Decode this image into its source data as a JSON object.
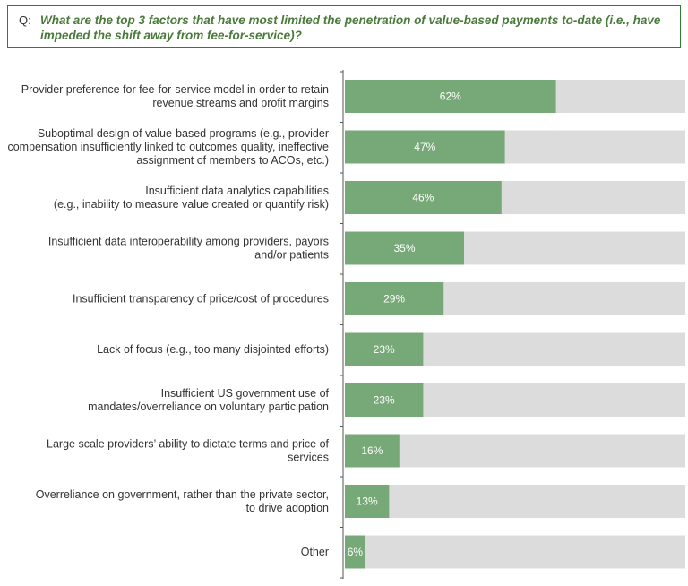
{
  "question": {
    "prefix": "Q:",
    "text": "What are the top 3 factors that have most limited the penetration of value-based payments to-date (i.e., have impeded the shift away from fee-for-service)?"
  },
  "colors": {
    "bar": "#77a877",
    "track": "#dcdcdc",
    "axis": "#555555",
    "question_border": "#2e7d32",
    "question_text": "#4a7a3a"
  },
  "chart_data": {
    "type": "bar",
    "orientation": "horizontal",
    "xlim": [
      0,
      100
    ],
    "grid": false,
    "categories": [
      [
        "Provider preference for fee-for-service model in order to retain",
        "revenue streams and profit margins"
      ],
      [
        "Suboptimal design of value-based programs (e.g., provider",
        "compensation insufficiently linked to outcomes quality, ineffective",
        "assignment of members to ACOs, etc.)"
      ],
      [
        "Insufficient data analytics capabilities",
        "(e.g., inability to measure value created or quantify risk)"
      ],
      [
        "Insufficient data interoperability among providers, payors",
        "and/or patients"
      ],
      [
        "Insufficient transparency of price/cost of procedures"
      ],
      [
        "Lack of focus (e.g., too many disjointed efforts)"
      ],
      [
        "Insufficient US government use of",
        "mandates/overreliance on voluntary participation"
      ],
      [
        "Large scale providers’ ability to dictate terms and price of",
        "services"
      ],
      [
        "Overreliance on government, rather than the private sector,",
        "to drive adoption"
      ],
      [
        "Other"
      ]
    ],
    "values": [
      62,
      47,
      46,
      35,
      29,
      23,
      23,
      16,
      13,
      6
    ],
    "value_labels": [
      "62%",
      "47%",
      "46%",
      "35%",
      "29%",
      "23%",
      "23%",
      "16%",
      "13%",
      "6%"
    ]
  }
}
